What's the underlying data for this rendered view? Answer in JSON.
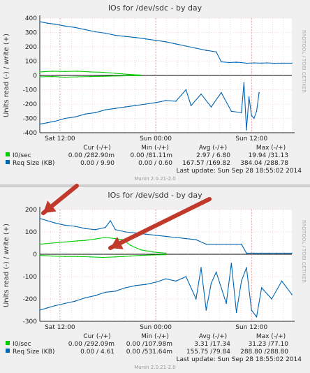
{
  "chart_data": [
    {
      "type": "line",
      "title": "IOs for /dev/sdc - by day",
      "ylabel": "Units read (-) / write (+)",
      "watermark": "RRDTOOL / TOBI OETIKER",
      "ylim": [
        -400,
        400
      ],
      "yticks": [
        "400",
        "300",
        "200",
        "100",
        "0",
        "-100",
        "-200",
        "-300",
        "-400"
      ],
      "ytick_values": [
        400,
        300,
        200,
        100,
        0,
        -100,
        -200,
        -300,
        -400
      ],
      "xlim": [
        0,
        100
      ],
      "xticks": [
        {
          "label": "Sat 12:00",
          "pos": 8
        },
        {
          "label": "Sun 00:00",
          "pos": 46
        },
        {
          "label": "Sun 12:00",
          "pos": 84
        }
      ],
      "grid": true,
      "series": [
        {
          "name": "I0/sec",
          "color": "#00cc00",
          "x": [
            0,
            5,
            10,
            15,
            20,
            25,
            30,
            35,
            40
          ],
          "y": [
            25,
            30,
            28,
            30,
            25,
            22,
            15,
            8,
            3
          ]
        },
        {
          "name": "I0/sec",
          "color": "#00cc00",
          "x": [
            0,
            5,
            10,
            15,
            20,
            25,
            30,
            35,
            40
          ],
          "y": [
            -10,
            -8,
            -12,
            -10,
            -8,
            -6,
            -4,
            -2,
            -1
          ]
        },
        {
          "name": "Req Size (KB)",
          "color": "#0066b3",
          "x": [
            0,
            3,
            6,
            10,
            14,
            18,
            22,
            26,
            30,
            34,
            38,
            42,
            46,
            50,
            54,
            58,
            62,
            66,
            70,
            72,
            75,
            78,
            80,
            82,
            85,
            88,
            90,
            93,
            96,
            100
          ],
          "y": [
            375,
            365,
            358,
            345,
            335,
            320,
            305,
            295,
            280,
            272,
            265,
            255,
            245,
            235,
            220,
            205,
            190,
            175,
            165,
            95,
            90,
            92,
            90,
            85,
            88,
            86,
            88,
            85,
            86,
            86
          ]
        },
        {
          "name": "Req Size (KB)",
          "color": "#0066b3",
          "x": [
            0,
            3,
            6,
            10,
            14,
            18,
            22,
            26,
            30,
            34,
            38,
            42,
            46,
            50,
            54,
            58,
            60,
            64,
            68,
            72,
            76,
            80,
            81,
            82,
            83,
            84,
            85,
            86,
            87
          ],
          "y": [
            -340,
            -330,
            -320,
            -300,
            -290,
            -270,
            -260,
            -240,
            -230,
            -220,
            -210,
            -200,
            -190,
            -175,
            -180,
            -100,
            -210,
            -130,
            -220,
            -120,
            -250,
            -260,
            -50,
            -380,
            -150,
            -280,
            -300,
            -250,
            -120
          ]
        }
      ],
      "legend": {
        "headers": [
          "Cur (-/+)",
          "Min (-/+)",
          "Avg (-/+)",
          "Max (-/+)"
        ],
        "rows": [
          {
            "label": "I0/sec",
            "color": "#00cc00",
            "cur": "0.00 /282.90m",
            "min": "0.00 /81.11m",
            "avg": "2.97 / 6.80",
            "max": "19.94 /31.13"
          },
          {
            "label": "Req Size (KB)",
            "color": "#0066b3",
            "cur": "0.00 / 9.90",
            "min": "0.00 / 0.60",
            "avg": "167.57 /169.82",
            "max": "384.04 /288.78"
          }
        ]
      },
      "last_update": "Last update:  Sun Sep 28 18:55:02 2014",
      "footer": "Munin 2.0.21-2.0"
    },
    {
      "type": "line",
      "title": "IOs for /dev/sdd - by day",
      "ylabel": "Units read (-) / write (+)",
      "watermark": "RRDTOOL / TOBI OETIKER",
      "ylim": [
        -300,
        200
      ],
      "yticks": [
        "200",
        "100",
        "0",
        "-100",
        "-200",
        "-300"
      ],
      "ytick_values": [
        200,
        100,
        0,
        -100,
        -200,
        -300
      ],
      "xlim": [
        0,
        100
      ],
      "xticks": [
        {
          "label": "Sat 12:00",
          "pos": 8
        },
        {
          "label": "Sun 00:00",
          "pos": 46
        },
        {
          "label": "Sun 12:00",
          "pos": 84
        }
      ],
      "grid": true,
      "series": [
        {
          "name": "I0/sec",
          "color": "#00cc00",
          "x": [
            0,
            5,
            10,
            15,
            18,
            22,
            26,
            30,
            33,
            36,
            40,
            45,
            50
          ],
          "y": [
            45,
            50,
            55,
            60,
            62,
            68,
            75,
            70,
            65,
            40,
            20,
            10,
            5
          ]
        },
        {
          "name": "I0/sec",
          "color": "#00cc00",
          "x": [
            0,
            5,
            10,
            15,
            20,
            25,
            30,
            33,
            36,
            40,
            45,
            50
          ],
          "y": [
            -5,
            -8,
            -10,
            -10,
            -12,
            -14,
            -12,
            -10,
            -8,
            -5,
            -3,
            -2
          ]
        },
        {
          "name": "Req Size (KB)",
          "color": "#0066b3",
          "x": [
            0,
            3,
            6,
            10,
            14,
            18,
            22,
            26,
            28,
            30,
            34,
            38,
            42,
            46,
            50,
            54,
            58,
            62,
            66,
            70,
            74,
            78,
            80,
            82,
            85,
            88,
            91,
            94,
            97,
            100
          ],
          "y": [
            160,
            150,
            140,
            130,
            125,
            115,
            110,
            120,
            150,
            110,
            100,
            95,
            90,
            85,
            80,
            75,
            70,
            65,
            45,
            45,
            45,
            45,
            45,
            5,
            5,
            5,
            5,
            5,
            5,
            5
          ]
        },
        {
          "name": "Req Size (KB)",
          "color": "#0066b3",
          "x": [
            0,
            3,
            6,
            10,
            14,
            18,
            22,
            26,
            30,
            34,
            38,
            42,
            46,
            50,
            54,
            58,
            62,
            64,
            66,
            68,
            70,
            74,
            76,
            78,
            80,
            82,
            84,
            86,
            88,
            92,
            96,
            100
          ],
          "y": [
            -250,
            -240,
            -230,
            -220,
            -210,
            -195,
            -185,
            -170,
            -165,
            -150,
            -140,
            -135,
            -125,
            -110,
            -120,
            -100,
            -200,
            -60,
            -250,
            -130,
            -80,
            -220,
            -40,
            -260,
            -120,
            -60,
            -250,
            -280,
            -150,
            -200,
            -120,
            -180
          ]
        }
      ],
      "legend": {
        "headers": [
          "Cur (-/+)",
          "Min (-/+)",
          "Avg (-/+)",
          "Max (-/+)"
        ],
        "rows": [
          {
            "label": "I0/sec",
            "color": "#00cc00",
            "cur": "0.00 /292.09m",
            "min": "0.00 /107.98m",
            "avg": "3.31 /17.34",
            "max": "31.23 /77.10"
          },
          {
            "label": "Req Size (KB)",
            "color": "#0066b3",
            "cur": "0.00 / 4.61",
            "min": "0.00 /531.64m",
            "avg": "155.75 /79.84",
            "max": "288.80 /288.80"
          }
        ]
      },
      "last_update": "Last update:  Sun Sep 28 18:55:02 2014",
      "footer": "Munin 2.0.21-2.0",
      "annotations": [
        {
          "type": "arrow",
          "color": "#c0392b",
          "target": "green-series-left"
        },
        {
          "type": "arrow",
          "color": "#c0392b",
          "target": "green-series-peak"
        }
      ]
    }
  ]
}
